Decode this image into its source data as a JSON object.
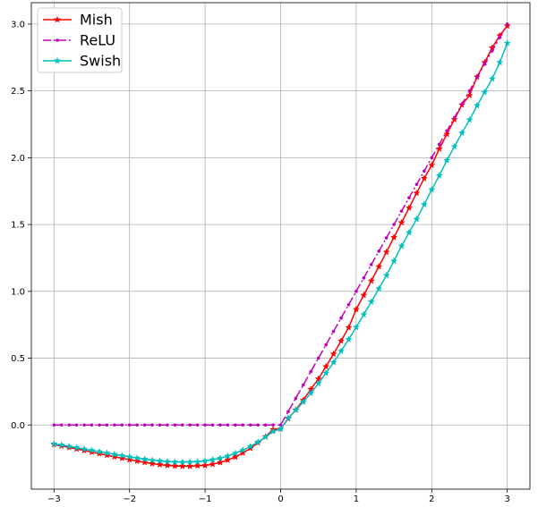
{
  "chart_data": {
    "type": "line",
    "x": [
      -3.0,
      -2.9,
      -2.8,
      -2.7,
      -2.6,
      -2.5,
      -2.4,
      -2.3,
      -2.2,
      -2.1,
      -2.0,
      -1.9,
      -1.8,
      -1.7,
      -1.6,
      -1.5,
      -1.4,
      -1.3,
      -1.2,
      -1.1,
      -1.0,
      -0.9,
      -0.8,
      -0.7,
      -0.6,
      -0.5,
      -0.4,
      -0.3,
      -0.2,
      -0.1,
      0.0,
      0.1,
      0.2,
      0.3,
      0.4,
      0.5,
      0.6,
      0.7,
      0.8,
      0.9,
      1.0,
      1.1,
      1.2,
      1.3,
      1.4,
      1.5,
      1.6,
      1.7,
      1.8,
      1.9,
      2.0,
      2.1,
      2.2,
      2.3,
      2.4,
      2.5,
      2.6,
      2.7,
      2.8,
      2.9,
      3.0
    ],
    "series": [
      {
        "name": "Mish",
        "color": "#ff0000",
        "line_style": "solid",
        "marker": "star",
        "values": [
          -0.146,
          -0.157,
          -0.168,
          -0.18,
          -0.191,
          -0.203,
          -0.215,
          -0.226,
          -0.238,
          -0.249,
          -0.26,
          -0.27,
          -0.28,
          -0.289,
          -0.297,
          -0.303,
          -0.307,
          -0.309,
          -0.309,
          -0.305,
          -0.303,
          -0.294,
          -0.281,
          -0.263,
          -0.24,
          -0.209,
          -0.174,
          -0.133,
          -0.087,
          -0.034,
          -0.03,
          0.048,
          0.113,
          0.186,
          0.268,
          0.345,
          0.437,
          0.531,
          0.629,
          0.729,
          0.865,
          0.971,
          1.078,
          1.185,
          1.294,
          1.404,
          1.514,
          1.624,
          1.735,
          1.845,
          1.944,
          2.066,
          2.176,
          2.286,
          2.396,
          2.466,
          2.605,
          2.712,
          2.822,
          2.914,
          2.986
        ]
      },
      {
        "name": "ReLU",
        "color": "#bf00bf",
        "line_style": "dashdot",
        "marker": "point",
        "values": [
          0,
          0,
          0,
          0,
          0,
          0,
          0,
          0,
          0,
          0,
          0,
          0,
          0,
          0,
          0,
          0,
          0,
          0,
          0,
          0,
          0,
          0,
          0,
          0,
          0,
          0,
          0,
          0,
          0,
          0,
          0.0,
          0.1,
          0.2,
          0.3,
          0.4,
          0.5,
          0.6,
          0.7,
          0.8,
          0.9,
          1.0,
          1.1,
          1.2,
          1.3,
          1.4,
          1.5,
          1.6,
          1.7,
          1.8,
          1.9,
          2.0,
          2.1,
          2.2,
          2.3,
          2.4,
          2.5,
          2.6,
          2.7,
          2.8,
          2.9,
          3.0
        ]
      },
      {
        "name": "Swish",
        "color": "#00bfbf",
        "line_style": "solid",
        "marker": "star",
        "values": [
          -0.142,
          -0.15,
          -0.16,
          -0.17,
          -0.18,
          -0.19,
          -0.2,
          -0.21,
          -0.22,
          -0.23,
          -0.238,
          -0.248,
          -0.256,
          -0.264,
          -0.269,
          -0.274,
          -0.277,
          -0.278,
          -0.277,
          -0.275,
          -0.269,
          -0.26,
          -0.249,
          -0.232,
          -0.212,
          -0.188,
          -0.16,
          -0.128,
          -0.09,
          -0.048,
          -0.03,
          0.052,
          0.11,
          0.172,
          0.238,
          0.311,
          0.388,
          0.468,
          0.552,
          0.64,
          0.731,
          0.826,
          0.922,
          1.02,
          1.12,
          1.227,
          1.339,
          1.44,
          1.54,
          1.65,
          1.761,
          1.866,
          1.98,
          2.083,
          2.186,
          2.283,
          2.39,
          2.49,
          2.59,
          2.713,
          2.857
        ]
      }
    ],
    "xlim": [
      -3.3,
      3.3
    ],
    "ylim": [
      -0.48,
      3.16
    ],
    "x_ticks": [
      -3,
      -2,
      -1,
      0,
      1,
      2,
      3
    ],
    "x_tick_labels": [
      "−3",
      "−2",
      "−1",
      "0",
      "1",
      "2",
      "3"
    ],
    "y_ticks": [
      0.0,
      0.5,
      1.0,
      1.5,
      2.0,
      2.5,
      3.0
    ],
    "y_tick_labels": [
      "0.0",
      "0.5",
      "1.0",
      "1.5",
      "2.0",
      "2.5",
      "3.0"
    ],
    "grid": true,
    "legend_position": "top-left",
    "title": "",
    "xlabel": "",
    "ylabel": ""
  }
}
